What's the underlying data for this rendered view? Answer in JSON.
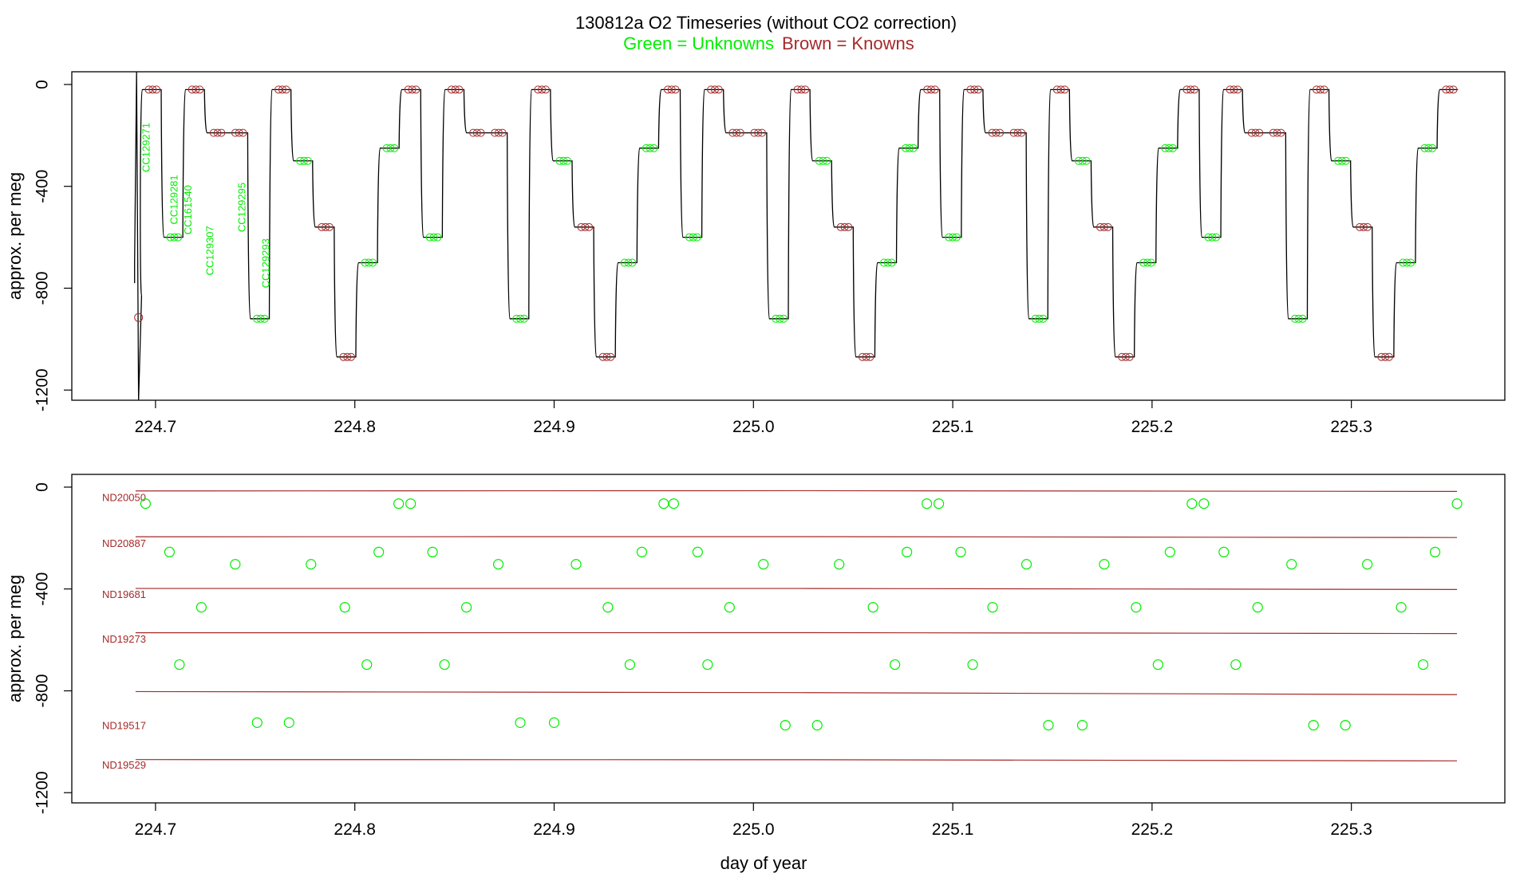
{
  "chart_data": [
    {
      "type": "line",
      "title": "130812a   O2 Timeseries (without CO2 correction)",
      "subtitle_unknowns": "Green = Unknowns",
      "subtitle_knowns": "Brown = Knowns",
      "ylabel": "approx. per meg",
      "xlim": [
        224.658,
        225.377
      ],
      "ylim": [
        -1240,
        50
      ],
      "x_ticks": [
        "224.7",
        "224.8",
        "224.9",
        "225.0",
        "225.1",
        "225.2",
        "225.3"
      ],
      "y_ticks": [
        "0",
        "-400",
        "-800",
        "-1200"
      ],
      "sample_labels": [
        {
          "text": "CC129271",
          "x": 224.697,
          "y": -150
        },
        {
          "text": "CC129281",
          "x": 224.711,
          "y": -355
        },
        {
          "text": "CC161540",
          "x": 224.718,
          "y": -395
        },
        {
          "text": "CC129307",
          "x": 224.729,
          "y": -555
        },
        {
          "text": "CC129295",
          "x": 224.745,
          "y": -385
        },
        {
          "text": "CC129293",
          "x": 224.757,
          "y": -605
        }
      ],
      "cycle_levels": [
        -700,
        -250,
        -20,
        -600,
        -20,
        -190,
        -190,
        -920,
        -20,
        -300,
        -560,
        -1070
      ],
      "first_segment_start": 224.692,
      "cycle_step_days": 0.01085,
      "series_end": 225.353,
      "colors": {
        "trace": "#000000",
        "unknowns": "#00ee00",
        "knowns": "#a52a2a"
      }
    },
    {
      "type": "scatter",
      "xlabel": "day of year",
      "ylabel": "approx. per meg",
      "xlim": [
        224.658,
        225.377
      ],
      "ylim": [
        -1240,
        50
      ],
      "x_ticks": [
        "224.7",
        "224.8",
        "224.9",
        "225.0",
        "225.1",
        "225.2",
        "225.3"
      ],
      "y_ticks": [
        "0",
        "-400",
        "-800",
        "-1200"
      ],
      "standards": [
        {
          "name": "ND20050",
          "x": [
            224.69,
            225.353
          ],
          "y": [
            -15,
            -17
          ]
        },
        {
          "name": "ND20887",
          "x": [
            224.69,
            225.353
          ],
          "y": [
            -195,
            -198
          ]
        },
        {
          "name": "ND19681",
          "x": [
            224.69,
            225.353
          ],
          "y": [
            -398,
            -402
          ]
        },
        {
          "name": "ND19273",
          "x": [
            224.69,
            225.353
          ],
          "y": [
            -572,
            -575
          ]
        },
        {
          "name": "",
          "x": [
            224.69,
            225.353
          ],
          "y": [
            -803,
            -815
          ]
        },
        {
          "name": "ND19517",
          "x": [
            224.69,
            225.353
          ],
          "y": [
            null,
            null
          ]
        },
        {
          "name": "ND19529",
          "x": [
            224.69,
            225.353
          ],
          "y": [
            -1070,
            -1075
          ]
        }
      ],
      "unknowns": {
        "x": [
          224.695,
          224.707,
          224.712,
          224.723,
          224.74,
          224.751,
          224.767,
          224.778,
          224.795,
          224.806,
          224.812,
          224.822,
          224.828,
          224.839,
          224.845,
          224.856,
          224.872,
          224.883,
          224.9,
          224.911,
          224.927,
          224.938,
          224.944,
          224.955,
          224.96,
          224.972,
          224.977,
          224.988,
          225.005,
          225.016,
          225.032,
          225.043,
          225.06,
          225.071,
          225.077,
          225.087,
          225.093,
          225.104,
          225.11,
          225.12,
          225.137,
          225.148,
          225.165,
          225.176,
          225.192,
          225.203,
          225.209,
          225.22,
          225.226,
          225.236,
          225.242,
          225.253,
          225.27,
          225.281,
          225.297,
          225.308,
          225.325,
          225.336,
          225.342,
          225.353
        ],
        "y": [
          -65,
          -255,
          -697,
          -472,
          -303,
          -925,
          -925,
          -303,
          -472,
          -697,
          -255,
          -65,
          -65,
          -255,
          -697,
          -472,
          -303,
          -925,
          -925,
          -303,
          -472,
          -697,
          -255,
          -65,
          -65,
          -255,
          -697,
          -472,
          -303,
          -935,
          -935,
          -303,
          -472,
          -697,
          -255,
          -65,
          -65,
          -255,
          -697,
          -472,
          -303,
          -935,
          -935,
          -303,
          -472,
          -697,
          -255,
          -65,
          -65,
          -255,
          -697,
          -472,
          -303,
          -935,
          -935,
          -303,
          -472,
          -697,
          -255,
          -65
        ]
      },
      "colors": {
        "unknowns": "#00ee00",
        "knowns": "#a52a2a"
      }
    }
  ]
}
